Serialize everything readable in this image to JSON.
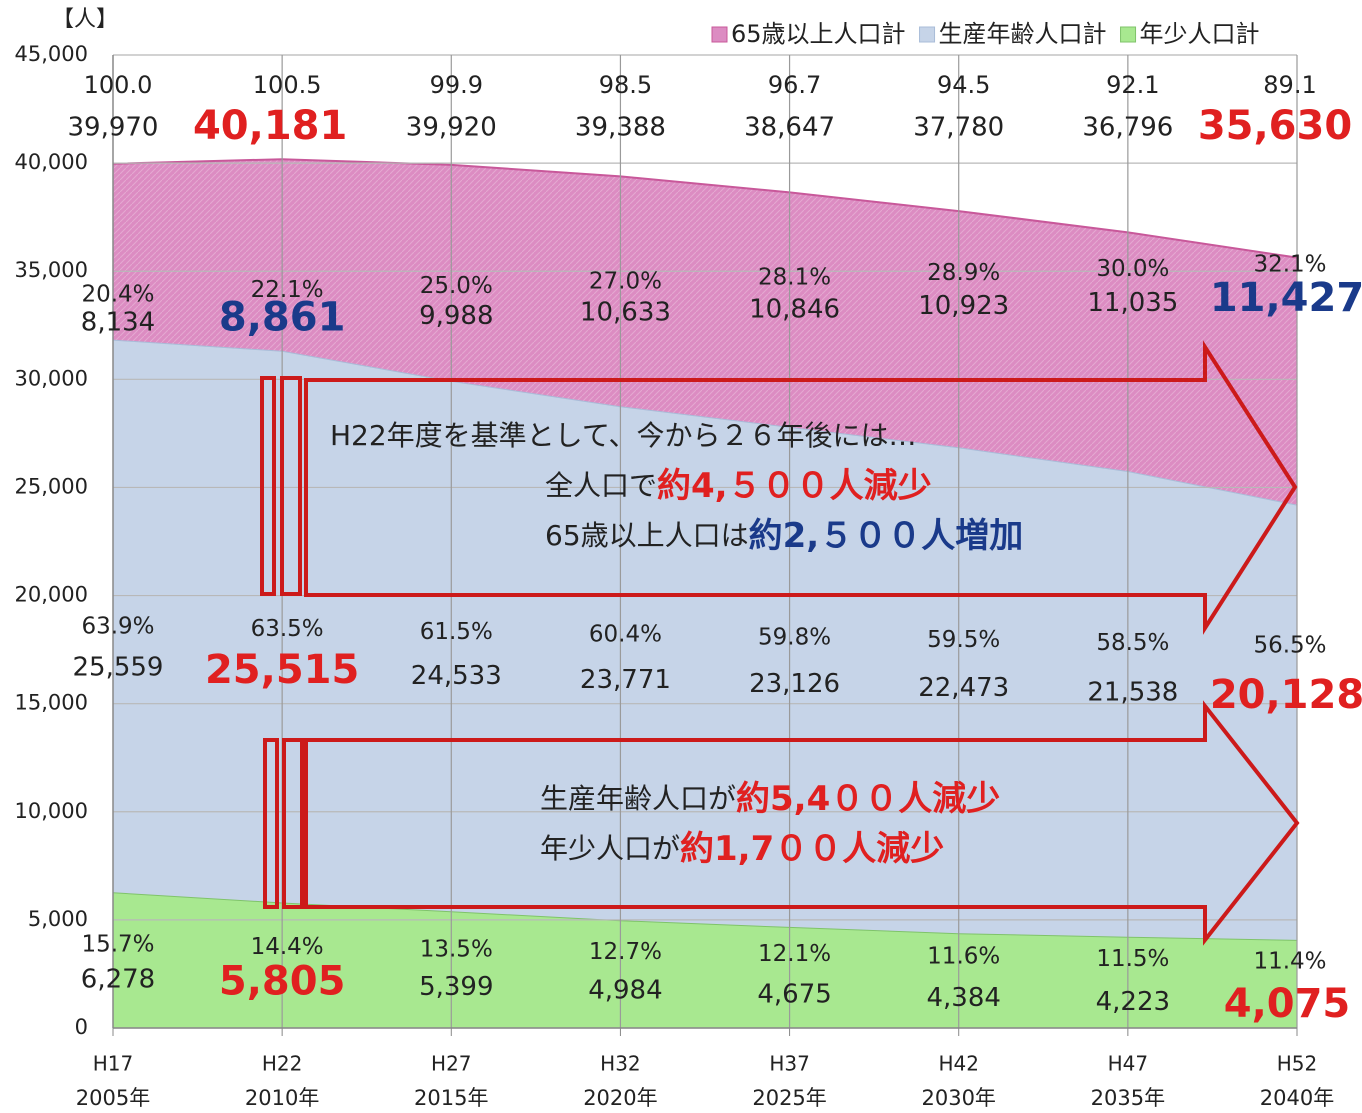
{
  "chart_data": {
    "type": "stacked_area",
    "y_label": "【人】",
    "categories": [
      "H17",
      "H22",
      "H27",
      "H32",
      "H37",
      "H42",
      "H47",
      "H52"
    ],
    "category_years": [
      "2005年",
      "2010年",
      "2015年",
      "2020年",
      "2025年",
      "2030年",
      "2035年",
      "2040年"
    ],
    "ylim": [
      0,
      45000
    ],
    "yticks": [
      0,
      {
        "value": 5000,
        "label": "5,000"
      },
      {
        "value": 10000,
        "label": "10,000"
      },
      {
        "value": 15000,
        "label": "15,000"
      },
      {
        "value": 20000,
        "label": "20,000"
      },
      {
        "value": 25000,
        "label": "25,000"
      },
      {
        "value": 30000,
        "label": "30,000"
      },
      {
        "value": 35000,
        "label": "35,000"
      },
      {
        "value": 40000,
        "label": "40,000"
      },
      {
        "value": 45000,
        "label": "45,000"
      }
    ],
    "grid": true,
    "legend": "top-right",
    "highlight": [
      1,
      7
    ],
    "highlight_color": "#e02020",
    "series": [
      {
        "name": "年少人口計",
        "color": "#a8e890",
        "edge": "#7fc36a",
        "highlight_color": "#e02020",
        "values": [
          6278,
          5805,
          5399,
          4984,
          4675,
          4384,
          4223,
          4075
        ],
        "value_labels": [
          "6,278",
          "5,805",
          "5,399",
          "4,984",
          "4,675",
          "4,384",
          "4,223",
          "4,075"
        ],
        "shares": [
          15.7,
          14.4,
          13.5,
          12.7,
          12.1,
          11.6,
          11.5,
          11.4
        ],
        "share_labels": [
          "15.7%",
          "14.4%",
          "13.5%",
          "12.7%",
          "12.1%",
          "11.6%",
          "11.5%",
          "11.4%"
        ]
      },
      {
        "name": "生産年齢人口計",
        "color": "#c6d4e8",
        "edge": "#a9bcd8",
        "highlight_color": "#e02020",
        "values": [
          25559,
          25515,
          24533,
          23771,
          23126,
          22473,
          21538,
          20128
        ],
        "value_labels": [
          "25,559",
          "25,515",
          "24,533",
          "23,771",
          "23,126",
          "22,473",
          "21,538",
          "20,128"
        ],
        "shares": [
          63.9,
          63.5,
          61.5,
          60.4,
          59.8,
          59.5,
          58.5,
          56.5
        ],
        "share_labels": [
          "63.9%",
          "63.5%",
          "61.5%",
          "60.4%",
          "59.8%",
          "59.5%",
          "58.5%",
          "56.5%"
        ]
      },
      {
        "name": "65歳以上人口計",
        "color": "#dc8cc2",
        "edge": "#c8589a",
        "highlight_color": "#1a3a8a",
        "values": [
          8134,
          8861,
          9988,
          10633,
          10846,
          10923,
          11035,
          11427
        ],
        "value_labels": [
          "8,134",
          "8,861",
          "9,988",
          "10,633",
          "10,846",
          "10,923",
          "11,035",
          "11,427"
        ],
        "shares": [
          20.4,
          22.1,
          25.0,
          27.0,
          28.1,
          28.9,
          30.0,
          32.1
        ],
        "share_labels": [
          "20.4%",
          "22.1%",
          "25.0%",
          "27.0%",
          "28.1%",
          "28.9%",
          "30.0%",
          "32.1%"
        ]
      }
    ],
    "totals": [
      39970,
      40181,
      39920,
      39388,
      38647,
      37780,
      36796,
      35630
    ],
    "total_labels": [
      "39,970",
      "40,181",
      "39,920",
      "39,388",
      "38,647",
      "37,780",
      "36,796",
      "35,630"
    ],
    "index": [
      100.0,
      100.5,
      99.9,
      98.5,
      96.7,
      94.5,
      92.1,
      89.1
    ],
    "index_labels": [
      "100.0",
      "100.5",
      "99.9",
      "98.5",
      "96.7",
      "94.5",
      "92.1",
      "89.1"
    ],
    "annotations": [
      {
        "lines": [
          [
            {
              "text": "H22年度を基準として、今から２６年後には…"
            }
          ],
          [
            {
              "text": "全人口で"
            },
            {
              "text": "約4,５００人減少",
              "color": "#e02020"
            }
          ],
          [
            {
              "text": "65歳以上人口は"
            },
            {
              "text": "約2,５００人増加",
              "color": "#1a3a8a"
            }
          ]
        ]
      },
      {
        "lines": [
          [
            {
              "text": "生産年齢人口が"
            },
            {
              "text": "約5,4００人減少",
              "color": "#e02020"
            }
          ],
          [
            {
              "text": "年少人口が"
            },
            {
              "text": "約1,7００人減少",
              "color": "#e02020"
            }
          ]
        ]
      }
    ]
  }
}
